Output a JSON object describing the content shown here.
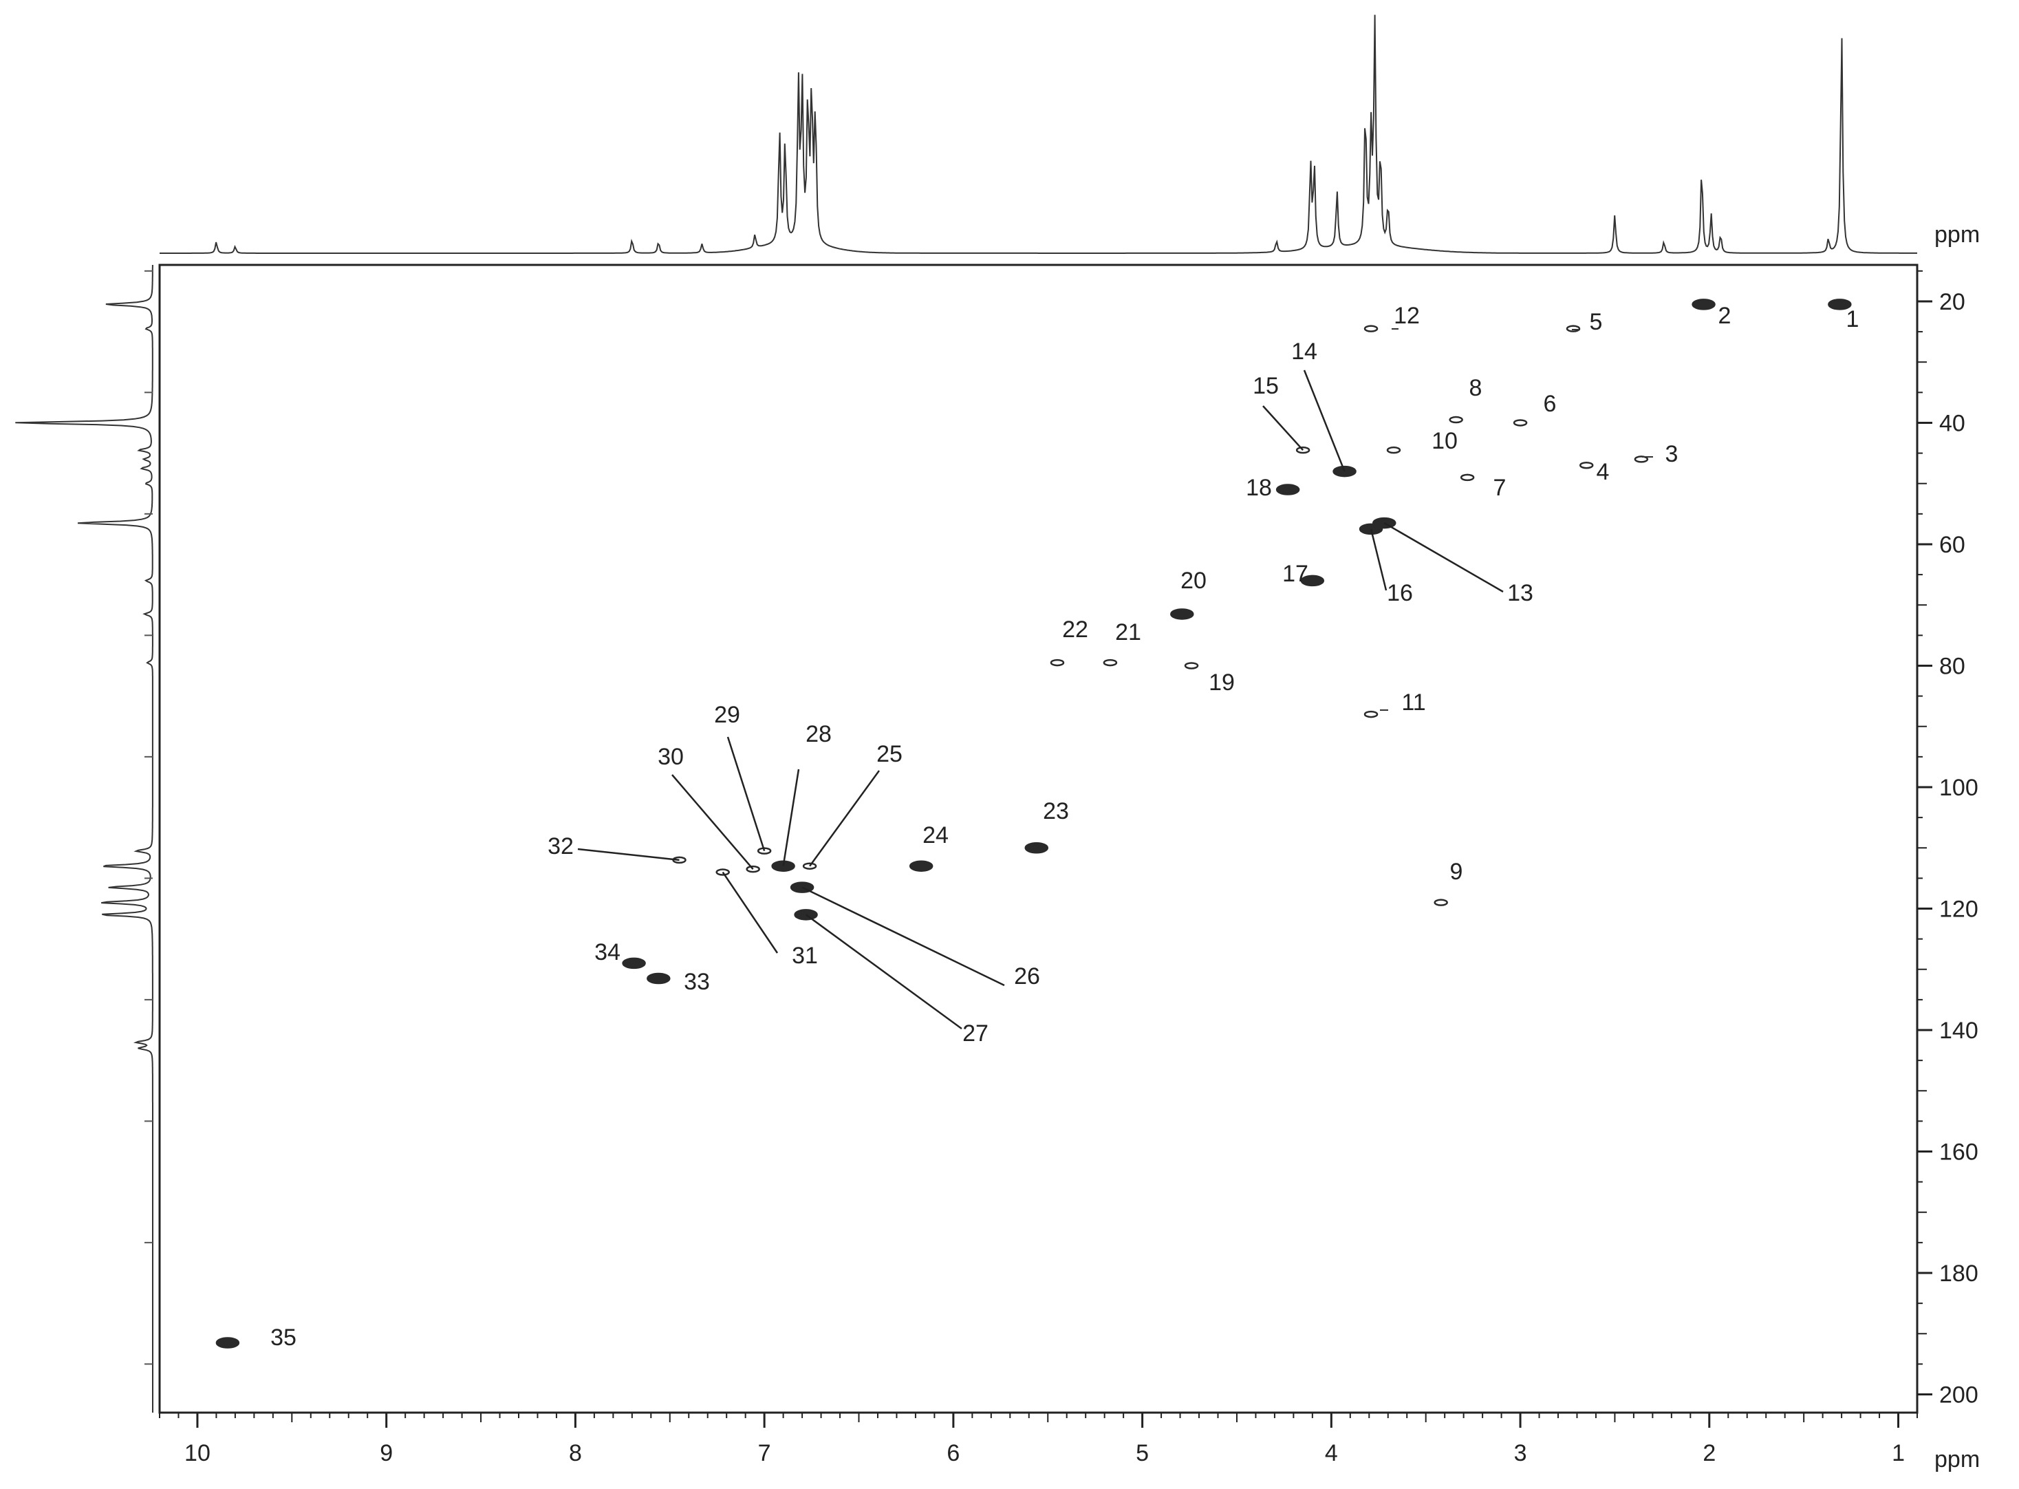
{
  "chart_data": {
    "type": "scatter",
    "title": "",
    "xlabel": "ppm",
    "ylabel": "ppm",
    "xlim": [
      10.2,
      0.9
    ],
    "ylim": [
      14,
      203
    ],
    "x_reversed": true,
    "grid": false,
    "x_ticks": [
      10,
      9,
      8,
      7,
      6,
      5,
      4,
      3,
      2,
      1
    ],
    "y_ticks": [
      20,
      40,
      60,
      80,
      100,
      120,
      140,
      160,
      180,
      200
    ],
    "cross_peaks": [
      {
        "label": "1",
        "x": 1.31,
        "y": 20.5,
        "shape": "filled"
      },
      {
        "label": "2",
        "x": 2.03,
        "y": 20.5,
        "shape": "filled"
      },
      {
        "label": "3",
        "x": 2.36,
        "y": 46.0,
        "shape": "open"
      },
      {
        "label": "4",
        "x": 2.65,
        "y": 47.0,
        "shape": "open"
      },
      {
        "label": "5",
        "x": 2.72,
        "y": 24.5,
        "shape": "open"
      },
      {
        "label": "6",
        "x": 3.0,
        "y": 40.0,
        "shape": "open"
      },
      {
        "label": "7",
        "x": 3.28,
        "y": 49.0,
        "shape": "open"
      },
      {
        "label": "8",
        "x": 3.34,
        "y": 39.5,
        "shape": "open"
      },
      {
        "label": "9",
        "x": 3.42,
        "y": 119.0,
        "shape": "open"
      },
      {
        "label": "10",
        "x": 3.67,
        "y": 44.5,
        "shape": "open"
      },
      {
        "label": "11",
        "x": 3.79,
        "y": 88.0,
        "shape": "open"
      },
      {
        "label": "12",
        "x": 3.79,
        "y": 24.5,
        "shape": "open"
      },
      {
        "label": "13",
        "x": 3.72,
        "y": 56.5,
        "shape": "filled"
      },
      {
        "label": "14",
        "x": 3.93,
        "y": 48.0,
        "shape": "filled"
      },
      {
        "label": "15",
        "x": 4.15,
        "y": 44.5,
        "shape": "open"
      },
      {
        "label": "16",
        "x": 3.79,
        "y": 57.5,
        "shape": "filled"
      },
      {
        "label": "17",
        "x": 4.1,
        "y": 66.0,
        "shape": "filled"
      },
      {
        "label": "18",
        "x": 4.23,
        "y": 51.0,
        "shape": "filled"
      },
      {
        "label": "19",
        "x": 4.74,
        "y": 80.0,
        "shape": "open"
      },
      {
        "label": "20",
        "x": 4.79,
        "y": 71.5,
        "shape": "filled"
      },
      {
        "label": "21",
        "x": 5.17,
        "y": 79.5,
        "shape": "open"
      },
      {
        "label": "22",
        "x": 5.45,
        "y": 79.5,
        "shape": "open"
      },
      {
        "label": "23",
        "x": 5.56,
        "y": 110.0,
        "shape": "filled"
      },
      {
        "label": "24",
        "x": 6.17,
        "y": 113.0,
        "shape": "filled"
      },
      {
        "label": "25",
        "x": 6.76,
        "y": 113.0,
        "shape": "open"
      },
      {
        "label": "26",
        "x": 6.8,
        "y": 116.5,
        "shape": "filled"
      },
      {
        "label": "27",
        "x": 6.78,
        "y": 121.0,
        "shape": "filled"
      },
      {
        "label": "28",
        "x": 6.9,
        "y": 113.0,
        "shape": "filled"
      },
      {
        "label": "29",
        "x": 7.0,
        "y": 110.5,
        "shape": "open"
      },
      {
        "label": "30",
        "x": 7.06,
        "y": 113.5,
        "shape": "open"
      },
      {
        "label": "31",
        "x": 7.22,
        "y": 114.0,
        "shape": "open"
      },
      {
        "label": "32",
        "x": 7.45,
        "y": 112.0,
        "shape": "open"
      },
      {
        "label": "33",
        "x": 7.56,
        "y": 131.5,
        "shape": "filled"
      },
      {
        "label": "34",
        "x": 7.69,
        "y": 129.0,
        "shape": "filled"
      },
      {
        "label": "35",
        "x": 9.84,
        "y": 191.5,
        "shape": "filled"
      }
    ],
    "projection_1h_peaks": [
      {
        "x": 9.9,
        "h": 0.05
      },
      {
        "x": 9.8,
        "h": 0.03
      },
      {
        "x": 7.7,
        "h": 0.06
      },
      {
        "x": 7.56,
        "h": 0.05
      },
      {
        "x": 7.33,
        "h": 0.04
      },
      {
        "x": 7.05,
        "h": 0.06
      },
      {
        "x": 6.92,
        "h": 0.5
      },
      {
        "x": 6.89,
        "h": 0.45
      },
      {
        "x": 6.82,
        "h": 0.7
      },
      {
        "x": 6.8,
        "h": 0.68
      },
      {
        "x": 6.77,
        "h": 0.62
      },
      {
        "x": 6.75,
        "h": 0.66
      },
      {
        "x": 6.73,
        "h": 0.58
      },
      {
        "x": 4.29,
        "h": 0.05
      },
      {
        "x": 4.11,
        "h": 0.38
      },
      {
        "x": 4.09,
        "h": 0.36
      },
      {
        "x": 3.97,
        "h": 0.25
      },
      {
        "x": 3.82,
        "h": 0.6
      },
      {
        "x": 3.79,
        "h": 0.48
      },
      {
        "x": 3.77,
        "h": 0.98
      },
      {
        "x": 3.74,
        "h": 0.4
      },
      {
        "x": 3.7,
        "h": 0.18
      },
      {
        "x": 2.5,
        "h": 0.17
      },
      {
        "x": 2.24,
        "h": 0.05
      },
      {
        "x": 2.04,
        "h": 0.38
      },
      {
        "x": 1.99,
        "h": 0.17
      },
      {
        "x": 1.94,
        "h": 0.08
      },
      {
        "x": 1.37,
        "h": 0.06
      },
      {
        "x": 1.3,
        "h": 1.0
      }
    ],
    "projection_13c_peaks": [
      {
        "y": 20.5,
        "h": 0.35
      },
      {
        "y": 24.5,
        "h": 0.05
      },
      {
        "y": 40.0,
        "h": 1.0
      },
      {
        "y": 44.5,
        "h": 0.1
      },
      {
        "y": 46.0,
        "h": 0.06
      },
      {
        "y": 47.5,
        "h": 0.08
      },
      {
        "y": 50.0,
        "h": 0.05
      },
      {
        "y": 56.5,
        "h": 0.55
      },
      {
        "y": 66.0,
        "h": 0.05
      },
      {
        "y": 71.5,
        "h": 0.06
      },
      {
        "y": 79.5,
        "h": 0.04
      },
      {
        "y": 110.5,
        "h": 0.12
      },
      {
        "y": 113.0,
        "h": 0.38
      },
      {
        "y": 116.5,
        "h": 0.32
      },
      {
        "y": 119.0,
        "h": 0.38
      },
      {
        "y": 121.0,
        "h": 0.38
      },
      {
        "y": 142.0,
        "h": 0.12
      },
      {
        "y": 143.0,
        "h": 0.1
      }
    ]
  }
}
